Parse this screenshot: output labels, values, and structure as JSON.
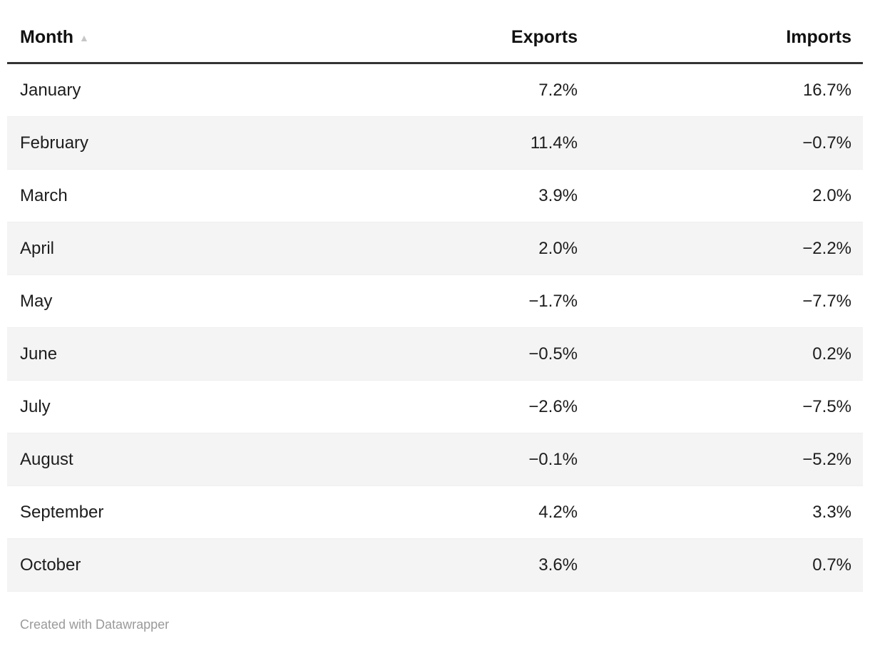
{
  "table": {
    "headers": {
      "month": "Month",
      "exports": "Exports",
      "imports": "Imports"
    },
    "sort_asc_icon": "▲",
    "rows": [
      {
        "month": "January",
        "exports": "7.2%",
        "imports": "16.7%"
      },
      {
        "month": "February",
        "exports": "11.4%",
        "imports": "−0.7%"
      },
      {
        "month": "March",
        "exports": "3.9%",
        "imports": "2.0%"
      },
      {
        "month": "April",
        "exports": "2.0%",
        "imports": "−2.2%"
      },
      {
        "month": "May",
        "exports": "−1.7%",
        "imports": "−7.7%"
      },
      {
        "month": "June",
        "exports": "−0.5%",
        "imports": "0.2%"
      },
      {
        "month": "July",
        "exports": "−2.6%",
        "imports": "−7.5%"
      },
      {
        "month": "August",
        "exports": "−0.1%",
        "imports": "−5.2%"
      },
      {
        "month": "September",
        "exports": "4.2%",
        "imports": "3.3%"
      },
      {
        "month": "October",
        "exports": "3.6%",
        "imports": "0.7%"
      }
    ]
  },
  "footer": {
    "attribution": "Created with Datawrapper"
  },
  "chart_data": {
    "type": "table",
    "columns": [
      "Month",
      "Exports",
      "Imports"
    ],
    "rows": [
      [
        "January",
        7.2,
        16.7
      ],
      [
        "February",
        11.4,
        -0.7
      ],
      [
        "March",
        3.9,
        2.0
      ],
      [
        "April",
        2.0,
        -2.2
      ],
      [
        "May",
        -1.7,
        -7.7
      ],
      [
        "June",
        -0.5,
        0.2
      ],
      [
        "July",
        -2.6,
        -7.5
      ],
      [
        "August",
        -0.1,
        -5.2
      ],
      [
        "September",
        4.2,
        3.3
      ],
      [
        "October",
        3.6,
        0.7
      ]
    ],
    "unit": "%",
    "sort": {
      "column": "Month",
      "direction": "ascending"
    },
    "row_striping": true,
    "stripe_color": "#f4f4f4",
    "header_rule_color": "#333333"
  }
}
